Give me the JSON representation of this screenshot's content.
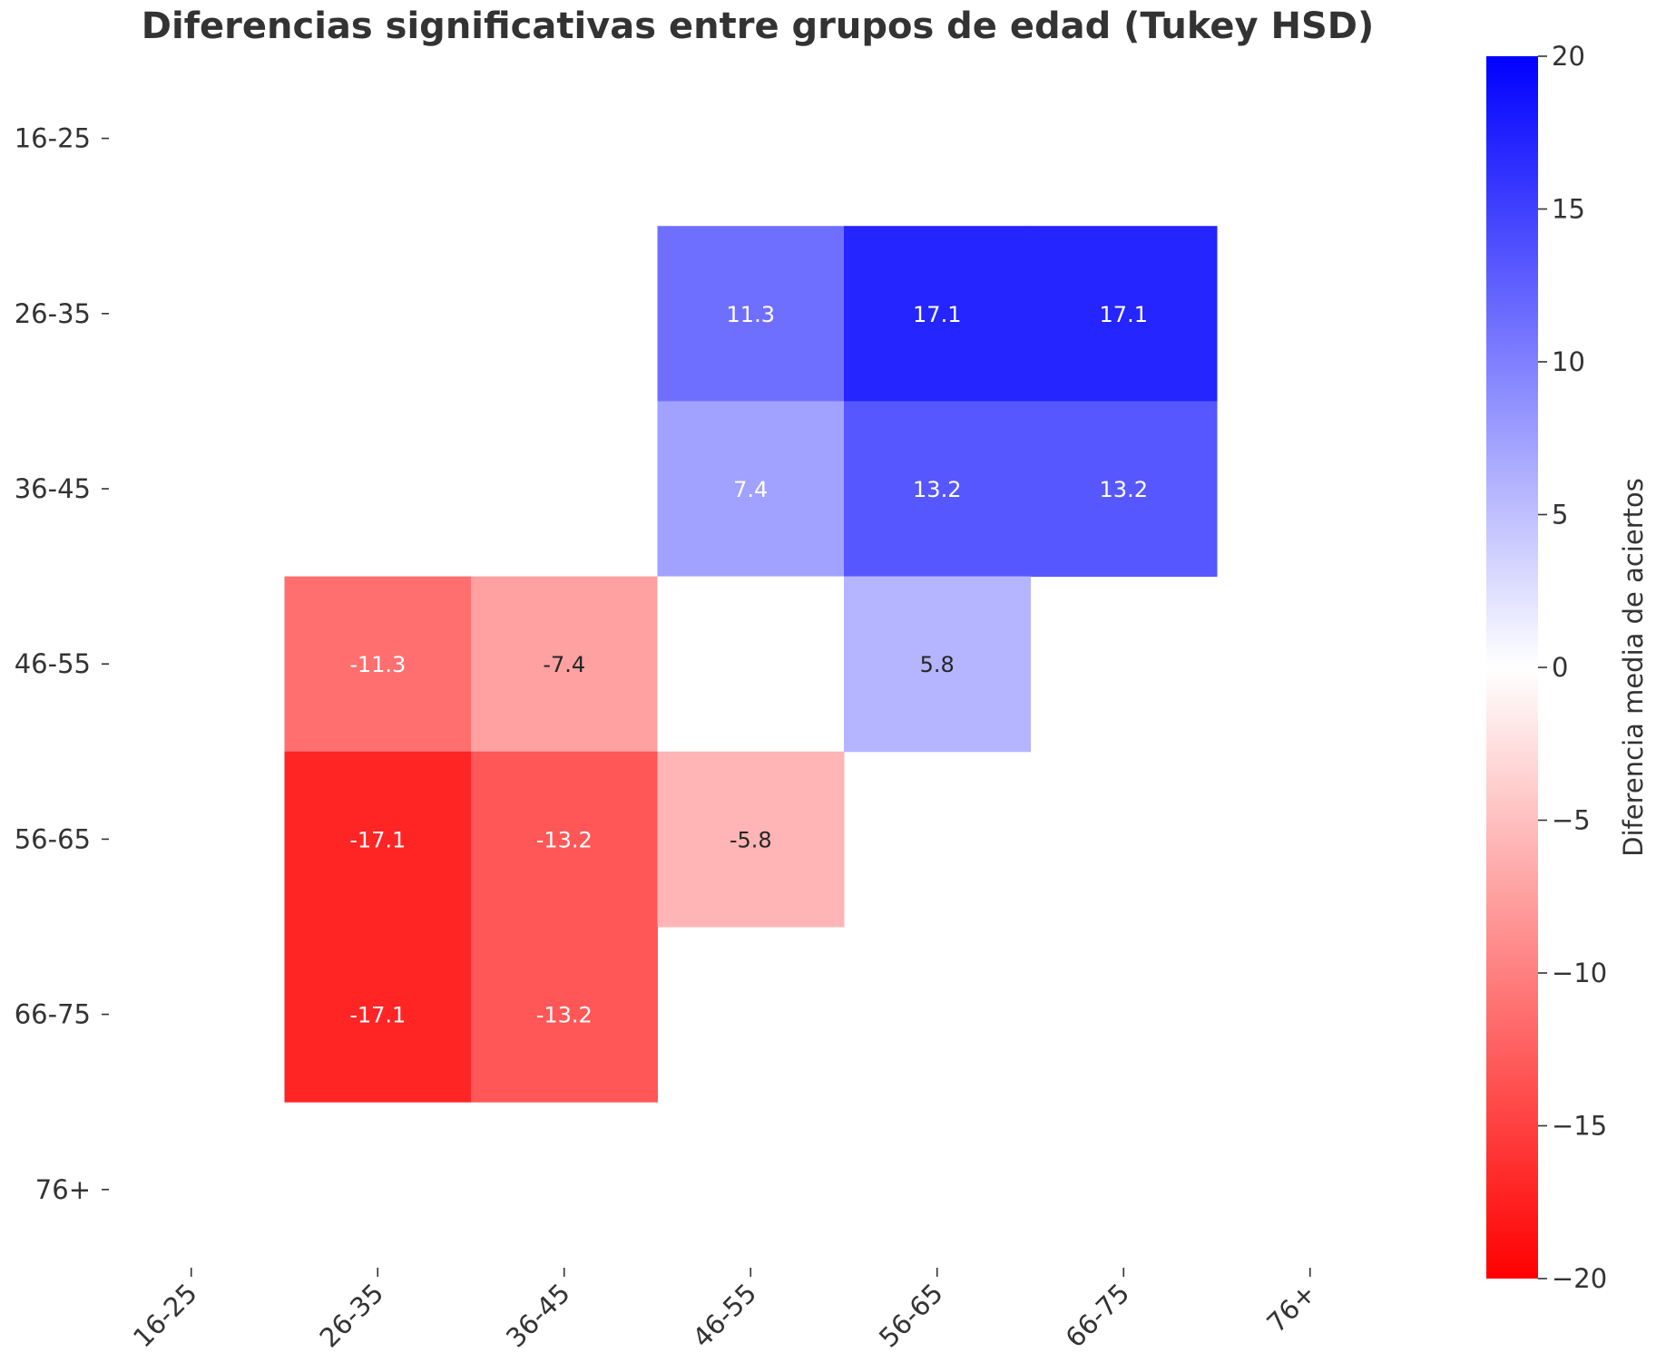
{
  "chart_data": {
    "type": "heatmap",
    "title": "Diferencias significativas entre grupos de edad (Tukey HSD)",
    "row_labels": [
      "16-25",
      "26-35",
      "36-45",
      "46-55",
      "56-65",
      "66-75",
      "76+"
    ],
    "col_labels": [
      "16-25",
      "26-35",
      "36-45",
      "46-55",
      "56-65",
      "66-75",
      "76+"
    ],
    "values": [
      [
        null,
        null,
        null,
        null,
        null,
        null,
        null
      ],
      [
        null,
        null,
        null,
        11.3,
        17.1,
        17.1,
        null
      ],
      [
        null,
        null,
        null,
        7.4,
        13.2,
        13.2,
        null
      ],
      [
        null,
        -11.3,
        -7.4,
        0,
        5.8,
        null,
        null
      ],
      [
        null,
        -17.1,
        -13.2,
        -5.8,
        null,
        null,
        null
      ],
      [
        null,
        -17.1,
        -13.2,
        null,
        null,
        null,
        null
      ],
      [
        null,
        null,
        null,
        null,
        null,
        null,
        null
      ]
    ],
    "colorbar": {
      "label": "Diferencia media de aciertos",
      "range": [
        -20,
        20
      ],
      "ticks": [
        20,
        15,
        10,
        5,
        0,
        -5,
        -10,
        -15,
        -20
      ],
      "tick_labels": [
        "20",
        "15",
        "10",
        "5",
        "0",
        "−5",
        "−10",
        "−15",
        "−20"
      ],
      "colormap": "bwr_r",
      "low_color": "#ff0000",
      "mid_color": "#ffffff",
      "high_color": "#0000ff"
    },
    "grid": false,
    "annotation_format": "%.1f"
  }
}
